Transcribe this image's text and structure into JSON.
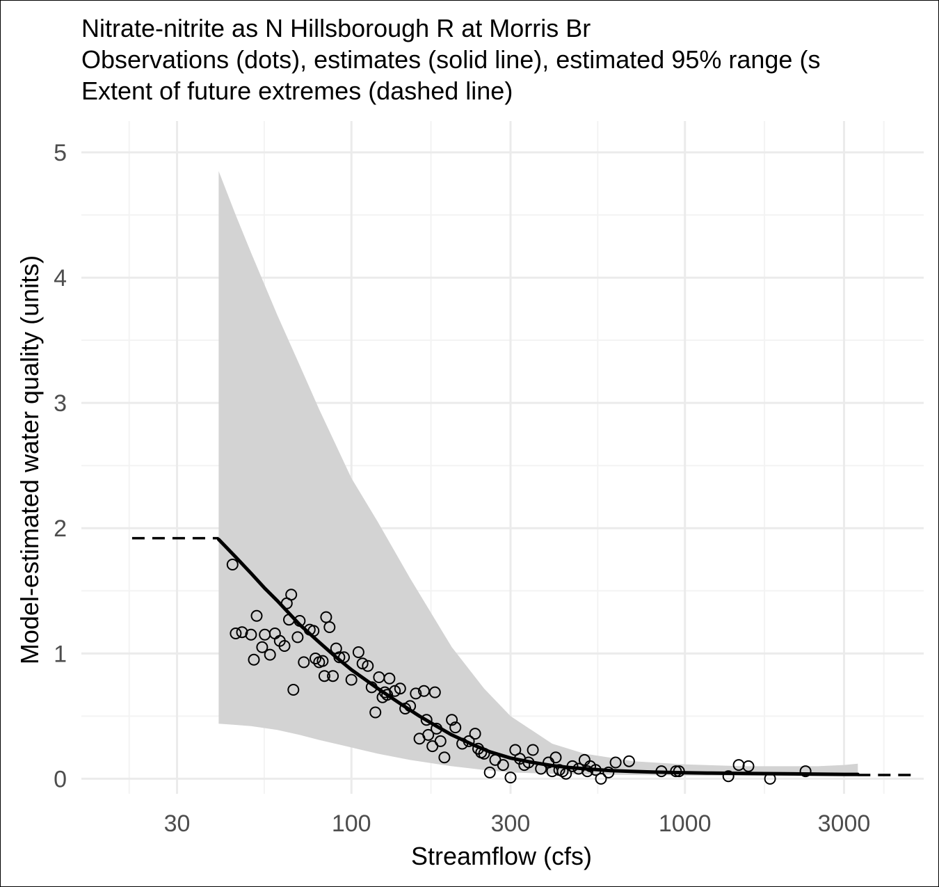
{
  "title_lines": [
    "Nitrate-nitrite as N Hillsborough R at Morris Br",
    "Observations (dots), estimates (solid line), estimated 95% range (s",
    "Extent of future extremes (dashed line)"
  ],
  "chart_data": {
    "type": "scatter",
    "xlabel": "Streamflow (cfs)",
    "ylabel": "Model-estimated water quality (units)",
    "x_scale": "log10",
    "xlim": [
      15.5,
      5200
    ],
    "ylim": [
      -0.12,
      5.25
    ],
    "x_ticks": [
      30,
      100,
      300,
      1000,
      3000
    ],
    "x_tick_labels": [
      "30",
      "100",
      "300",
      "1000",
      "3000"
    ],
    "y_ticks": [
      0,
      1,
      2,
      3,
      4,
      5
    ],
    "y_tick_labels": [
      "0",
      "1",
      "2",
      "3",
      "4",
      "5"
    ],
    "grid": true,
    "legend": "none",
    "colors": {
      "band": "#d3d3d3",
      "line": "#000000",
      "points": "#000000",
      "grid_major": "#ebebeb",
      "grid_minor": "#f3f3f3",
      "ticks": "#4d4d4d"
    },
    "estimate_line": {
      "x": [
        40,
        45,
        50,
        55,
        60,
        70,
        80,
        90,
        100,
        120,
        140,
        160,
        180,
        200,
        230,
        260,
        300,
        350,
        400,
        450,
        500,
        600,
        700,
        800,
        1000,
        1200,
        1500,
        2000,
        2500,
        3000,
        3300
      ],
      "y": [
        1.91,
        1.77,
        1.64,
        1.52,
        1.42,
        1.23,
        1.09,
        0.97,
        0.87,
        0.72,
        0.6,
        0.5,
        0.42,
        0.35,
        0.275,
        0.215,
        0.165,
        0.13,
        0.105,
        0.09,
        0.08,
        0.065,
        0.058,
        0.054,
        0.048,
        0.045,
        0.042,
        0.04,
        0.037,
        0.035,
        0.035
      ]
    },
    "band_95": {
      "x": [
        40,
        45,
        50,
        60,
        70,
        80,
        100,
        120,
        150,
        200,
        250,
        300,
        400,
        500,
        700,
        1000,
        1500,
        2000,
        2500,
        3000,
        3300
      ],
      "upper": [
        4.85,
        4.5,
        4.2,
        3.7,
        3.3,
        2.95,
        2.4,
        2.05,
        1.6,
        1.05,
        0.72,
        0.5,
        0.28,
        0.2,
        0.14,
        0.115,
        0.1,
        0.1,
        0.1,
        0.11,
        0.12
      ],
      "lower": [
        0.44,
        0.43,
        0.42,
        0.39,
        0.35,
        0.31,
        0.25,
        0.2,
        0.15,
        0.1,
        0.07,
        0.05,
        0.04,
        0.035,
        0.03,
        0.025,
        0.022,
        0.02,
        0.02,
        0.02,
        0.02
      ]
    },
    "future_extremes": [
      {
        "x": [
          22,
          40
        ],
        "y": [
          1.92,
          1.92
        ]
      },
      {
        "x": [
          3300,
          4900
        ],
        "y": [
          0.03,
          0.03
        ]
      }
    ],
    "observations": {
      "x": [
        47,
        50,
        45,
        44,
        52,
        54,
        55,
        57,
        59,
        51,
        61,
        63,
        64,
        65,
        66,
        67,
        69,
        70,
        72,
        75,
        77,
        78,
        80,
        82,
        83,
        84,
        86,
        88,
        90,
        92,
        95,
        100,
        105,
        108,
        112,
        115,
        118,
        121,
        124,
        126,
        128,
        130,
        135,
        140,
        145,
        150,
        156,
        160,
        165,
        168,
        170,
        175,
        178,
        180,
        185,
        190,
        200,
        205,
        215,
        225,
        235,
        240,
        245,
        250,
        260,
        270,
        285,
        300,
        310,
        320,
        330,
        340,
        350,
        370,
        390,
        400,
        410,
        420,
        430,
        440,
        460,
        480,
        500,
        510,
        520,
        540,
        560,
        590,
        620,
        680,
        850,
        940,
        960,
        1350,
        1450,
        1550,
        1800,
        2300
      ],
      "y": [
        1.17,
        1.15,
        1.16,
        1.71,
        1.3,
        1.05,
        1.15,
        0.99,
        1.16,
        0.95,
        1.1,
        1.06,
        1.4,
        1.27,
        1.47,
        0.71,
        1.13,
        1.26,
        0.93,
        1.19,
        1.18,
        0.96,
        0.93,
        0.94,
        0.82,
        1.29,
        1.21,
        0.82,
        1.04,
        0.97,
        0.97,
        0.79,
        1.01,
        0.92,
        0.9,
        0.73,
        0.53,
        0.81,
        0.65,
        0.69,
        0.67,
        0.8,
        0.7,
        0.72,
        0.56,
        0.58,
        0.68,
        0.32,
        0.7,
        0.47,
        0.35,
        0.26,
        0.69,
        0.4,
        0.3,
        0.17,
        0.47,
        0.41,
        0.28,
        0.3,
        0.36,
        0.24,
        0.21,
        0.2,
        0.05,
        0.15,
        0.11,
        0.01,
        0.23,
        0.16,
        0.11,
        0.13,
        0.23,
        0.08,
        0.13,
        0.06,
        0.17,
        0.07,
        0.06,
        0.04,
        0.1,
        0.08,
        0.15,
        0.06,
        0.1,
        0.07,
        0.0,
        0.05,
        0.13,
        0.14,
        0.06,
        0.06,
        0.06,
        0.02,
        0.11,
        0.1,
        0.0,
        0.06
      ]
    }
  }
}
